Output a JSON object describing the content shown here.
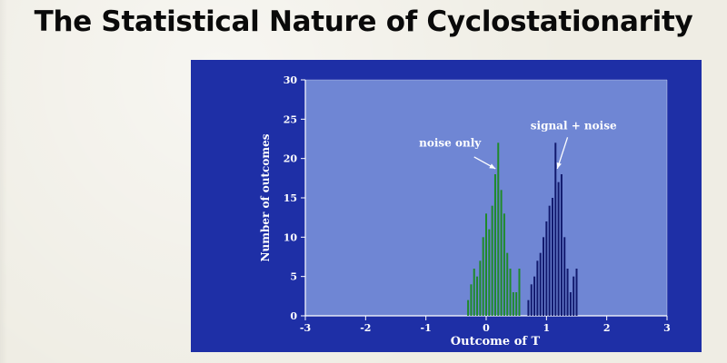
{
  "page": {
    "headline": "The Statistical Nature of Cyclostationarity"
  },
  "colors": {
    "slide_bg": "#1e2fa6",
    "plot_bg": "#6f86d4",
    "noise_bar": "#1f8a2a",
    "signal_bar": "#121a6e",
    "text": "#ffffff"
  },
  "chart_data": {
    "type": "bar",
    "title": "",
    "xlabel": "Outcome of T",
    "ylabel": "Number of outcomes",
    "xlim": [
      -3,
      3
    ],
    "ylim": [
      0,
      30
    ],
    "xticks": [
      "-3",
      "-2",
      "-1",
      "0",
      "1",
      "2",
      "3"
    ],
    "xtick_values": [
      -3,
      -2,
      -1,
      0,
      1,
      2,
      3
    ],
    "yticks": [
      "0",
      "5",
      "10",
      "15",
      "20",
      "25",
      "30"
    ],
    "ytick_values": [
      0,
      5,
      10,
      15,
      20,
      25,
      30
    ],
    "bar_width": 0.03,
    "series": [
      {
        "name": "noise only",
        "annotation": "noise only",
        "annotation_target": 0.2,
        "x": [
          -0.3,
          -0.25,
          -0.2,
          -0.15,
          -0.1,
          -0.05,
          0.0,
          0.05,
          0.1,
          0.15,
          0.2,
          0.25,
          0.3,
          0.35,
          0.4,
          0.45,
          0.5,
          0.55
        ],
        "values": [
          2,
          4,
          6,
          5,
          7,
          10,
          13,
          11,
          14,
          18,
          22,
          16,
          13,
          8,
          6,
          3,
          3,
          6
        ]
      },
      {
        "name": "signal + noise",
        "annotation": "signal + noise",
        "annotation_target": 1.15,
        "x": [
          0.7,
          0.75,
          0.8,
          0.85,
          0.9,
          0.95,
          1.0,
          1.05,
          1.1,
          1.15,
          1.2,
          1.25,
          1.3,
          1.35,
          1.4,
          1.45,
          1.5
        ],
        "values": [
          2,
          4,
          5,
          7,
          8,
          10,
          12,
          14,
          15,
          22,
          17,
          18,
          10,
          6,
          3,
          5,
          6
        ]
      }
    ]
  }
}
